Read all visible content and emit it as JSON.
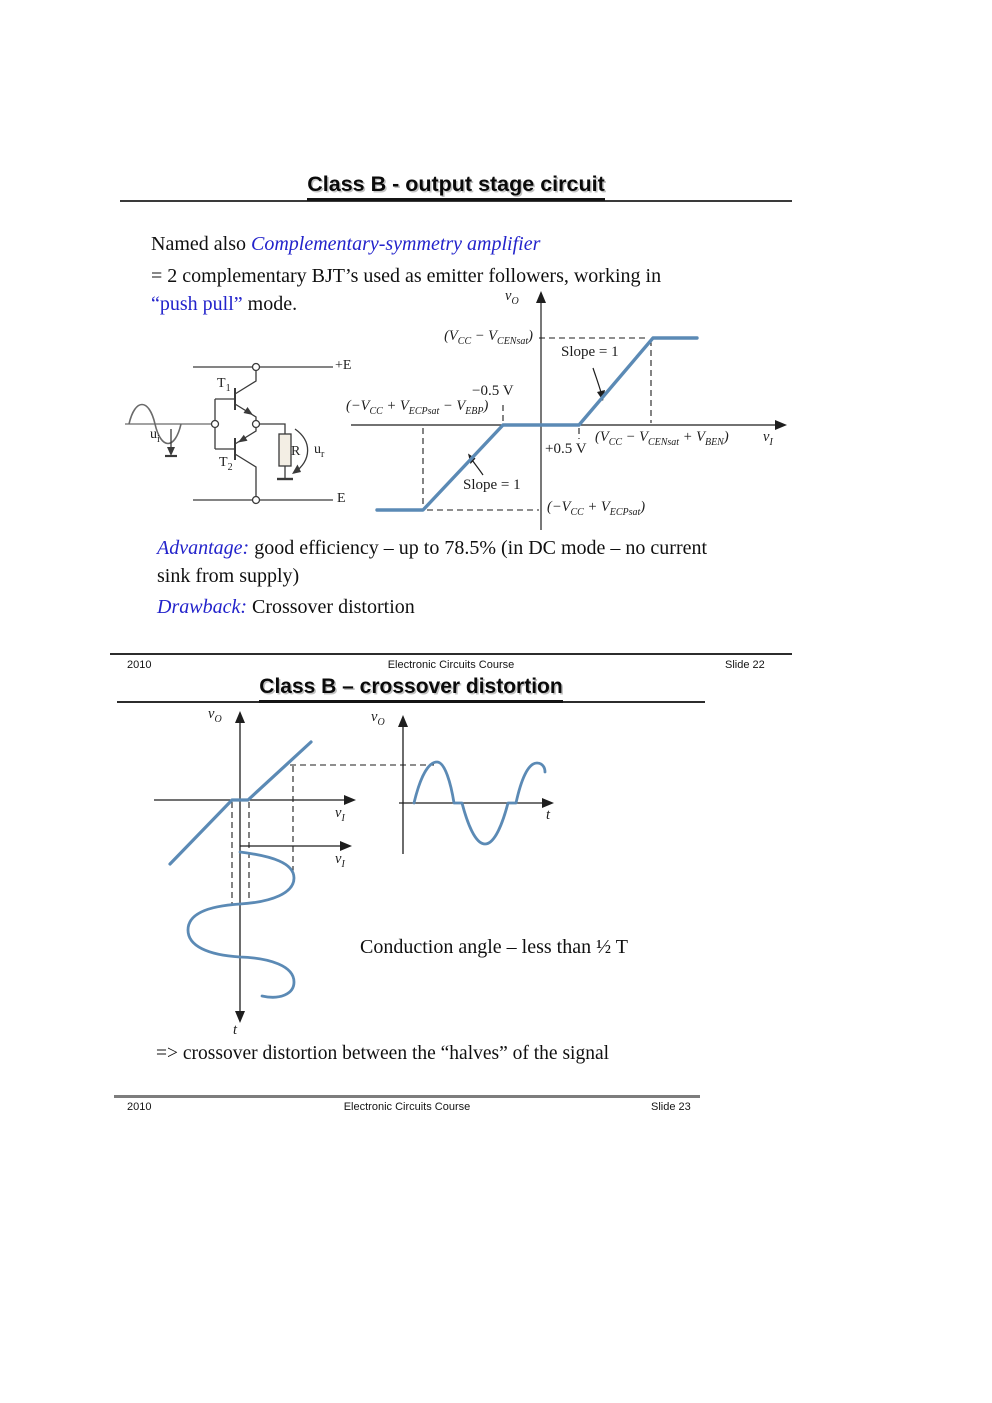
{
  "colors": {
    "accent_blue": "#2323cb",
    "curve_blue": "#5b8ab5",
    "footer_rule_gray": "#7d7d7d"
  },
  "slide22": {
    "title": "Class B - output stage circuit",
    "intro": {
      "named_prefix": "Named also ",
      "named_blue": "Complementary-symmetry amplifier",
      "line2": "= 2 complementary BJT’s  used as emitter followers, working in",
      "line3_blue": "“push pull”",
      "line3_rest": " mode."
    },
    "circuit": {
      "plus_rail": "+E",
      "minus_rail": "E",
      "t1": "T_{1}",
      "t2": "T_{2}",
      "u_in": "u_{i}",
      "resistor": "R",
      "u_out": "u_{r}"
    },
    "transfer_graph": {
      "y_axis": "v_{O}",
      "x_axis": "v_{I}",
      "top_level": "(V_{CC} − V_{CENsat})",
      "slope_top": "Slope = 1",
      "neg_half_volt": "−0.5 V",
      "left_level": "(−V_{CC} + V_{ECPsat} − V_{EBP})",
      "right_level": "(V_{CC} − V_{CENsat} + V_{BEN})",
      "pos_half_volt": "+0.5 V",
      "slope_bottom": "Slope = 1",
      "bottom_level": "(−V_{CC} + V_{ECPsat})"
    },
    "advantage_label": "Advantage:",
    "advantage_line1": " good efficiency – up to 78.5% (in DC mode – no current",
    "advantage_line2": "sink from supply)",
    "drawback_label": "Drawback:",
    "drawback_text": " Crossover distortion",
    "footer": {
      "year": "2010",
      "course": "Electronic Circuits Course",
      "slide": "Slide 22"
    }
  },
  "slide23": {
    "title": "Class B – crossover distortion",
    "left_graph": {
      "y_axis": "v_{O}",
      "x_axis_upper": "v_{I}",
      "x_axis_lower": "v_{I}",
      "time_axis": "t"
    },
    "right_graph": {
      "y_axis": "v_{O}",
      "x_axis": "t"
    },
    "conduction_note": "Conduction angle – less than ½ T",
    "conclusion": "=> crossover distortion between the “halves” of the signal",
    "footer": {
      "year": "2010",
      "course": "Electronic Circuits Course",
      "slide": "Slide 23"
    }
  }
}
